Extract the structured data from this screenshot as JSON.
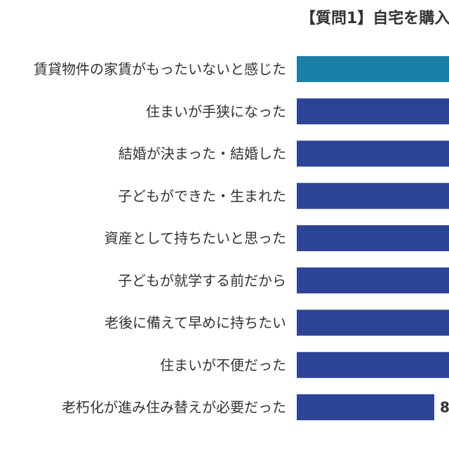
{
  "chart_data": {
    "type": "bar",
    "orientation": "horizontal",
    "title": "【質問1】自宅を購入",
    "categories": [
      "賃貸物件の家賃がもったいないと感じた",
      "住まいが手狭になった",
      "結婚が決まった・結婚した",
      "子どもができた・生まれた",
      "資産として持ちたいと思った",
      "子どもが就学する前だから",
      "老後に備えて早めに持ちたい",
      "住まいが不便だった",
      "老朽化が進み住み替えが必要だった"
    ],
    "value_labels": [
      "",
      "",
      "",
      "",
      "",
      "",
      "",
      "",
      "8"
    ],
    "colors": [
      "#1a80a8",
      "#2c4496",
      "#2c4496",
      "#2c4496",
      "#2c4496",
      "#2c4496",
      "#2c4496",
      "#2c4496",
      "#2c4496"
    ],
    "grid": false
  }
}
